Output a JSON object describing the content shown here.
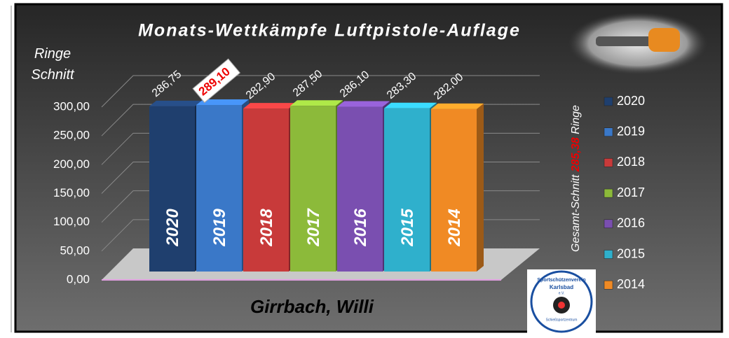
{
  "chart_data": {
    "type": "bar3d",
    "title": "Monats-Wettkämpfe Luftpistole-Auflage",
    "y_label": "Ringe Schnitt",
    "categories": [
      "2020",
      "2019",
      "2018",
      "2017",
      "2016",
      "2015",
      "2014"
    ],
    "values": [
      286.75,
      289.1,
      282.9,
      287.5,
      286.1,
      283.3,
      282.0
    ],
    "value_labels": [
      "286,75",
      "289,10",
      "282,90",
      "287,50",
      "286,10",
      "283,30",
      "282,00"
    ],
    "highlight": 1,
    "colors": [
      "#1f3f6e",
      "#3a78c8",
      "#c83a3a",
      "#8cba3a",
      "#7a4fb0",
      "#2fb0cc",
      "#f08a24"
    ],
    "ylim": [
      0,
      300
    ],
    "yticks": [
      {
        "value": 0,
        "label": "0,00"
      },
      {
        "value": 50,
        "label": "50,00"
      },
      {
        "value": 100,
        "label": "100,00"
      },
      {
        "value": 150,
        "label": "150,00"
      },
      {
        "value": 200,
        "label": "200,00"
      },
      {
        "value": 250,
        "label": "250,00"
      },
      {
        "value": 300,
        "label": "300,00"
      }
    ],
    "grid": true,
    "legend": "right",
    "annotation": {
      "prefix": "Gesamt-Schnitt",
      "value": "285,38",
      "suffix": "Ringe"
    },
    "footer": "Girrbach, Willi",
    "logo": {
      "line1": "Sportschützenverein",
      "line2": "Karlsbad",
      "line3": "e.V.",
      "line4": "Schießsportzentrum"
    }
  }
}
